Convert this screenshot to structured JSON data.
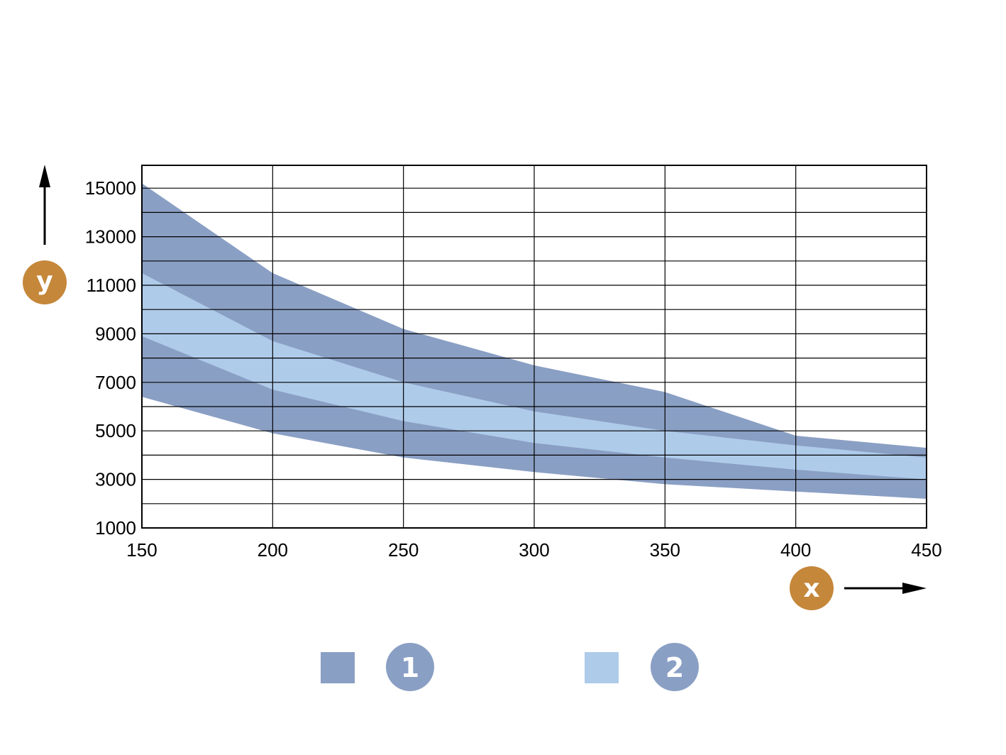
{
  "chart_data": {
    "type": "area",
    "title": "",
    "xlabel": "x",
    "ylabel": "y",
    "xlim": [
      150,
      450
    ],
    "ylim": [
      1000,
      16000
    ],
    "x_ticks": [
      150,
      200,
      250,
      300,
      350,
      400,
      450
    ],
    "x_tick_labels": [
      "150",
      "200",
      "250",
      "300",
      "350",
      "400",
      "450"
    ],
    "y_ticks": [
      1000,
      3000,
      5000,
      7000,
      9000,
      11000,
      13000,
      15000
    ],
    "y_tick_labels": [
      "1000",
      "3000",
      "5000",
      "7000",
      "9000",
      "11000",
      "13000",
      "15000"
    ],
    "y_minor_grid": [
      2000,
      4000,
      6000,
      8000,
      10000,
      12000,
      14000,
      16000
    ],
    "grid": true,
    "legend_position": "bottom-center",
    "x": [
      150,
      200,
      250,
      300,
      350,
      400,
      450
    ],
    "series": [
      {
        "name": "1",
        "color": "#8a9fc4",
        "lower": [
          6400,
          4900,
          3900,
          3300,
          2800,
          2500,
          2200
        ],
        "upper": [
          15200,
          11500,
          9200,
          7700,
          6600,
          4800,
          4300
        ]
      },
      {
        "name": "2",
        "color": "#aecbea",
        "lower": [
          8900,
          6700,
          5400,
          4500,
          3900,
          3400,
          3000
        ],
        "upper": [
          11500,
          8700,
          7000,
          5800,
          5000,
          4400,
          3900
        ]
      }
    ]
  },
  "axis_badges": {
    "x_label": "x",
    "y_label": "y",
    "color": "#c5873a"
  },
  "legend": {
    "items": [
      {
        "label": "1",
        "swatch_color": "#8a9fc4",
        "badge_color": "#8a9fc4"
      },
      {
        "label": "2",
        "swatch_color": "#aecbea",
        "badge_color": "#8a9fc4"
      }
    ]
  }
}
